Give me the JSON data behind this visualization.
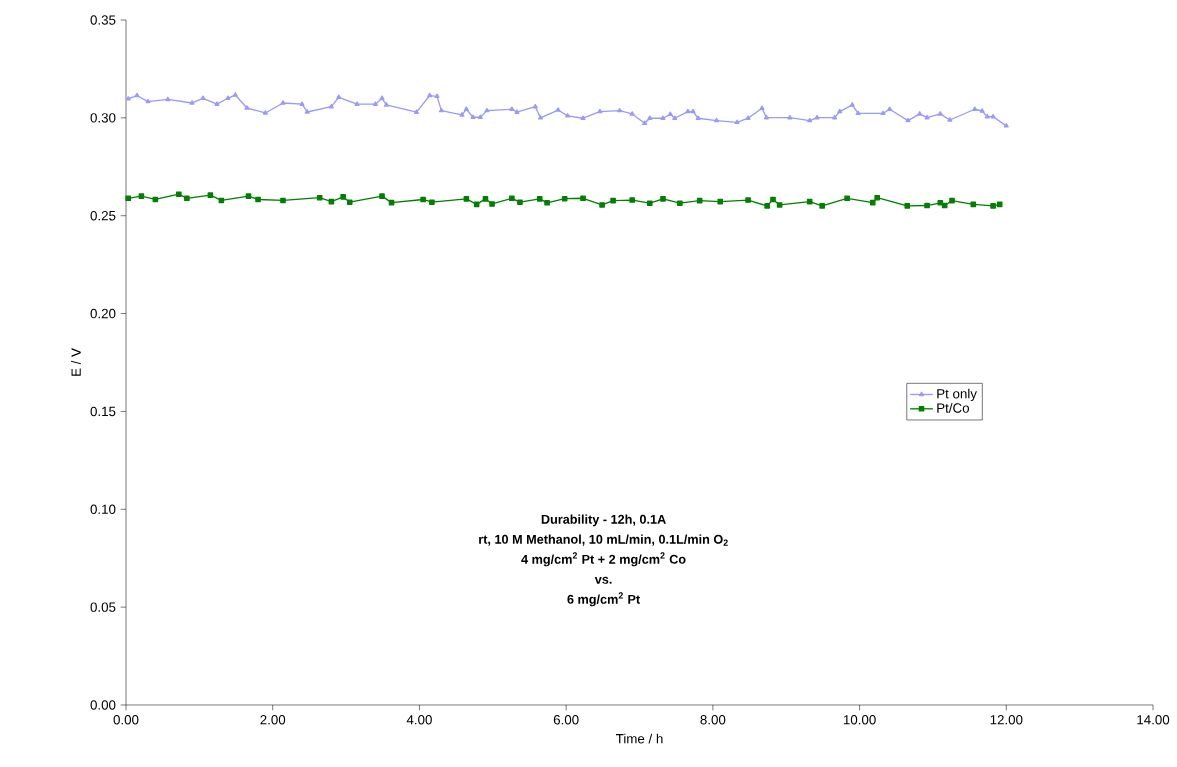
{
  "chart_data": {
    "type": "line",
    "xlabel": "Time / h",
    "ylabel": "E / V",
    "xlim": [
      0,
      14
    ],
    "ylim": [
      0,
      0.35
    ],
    "xticks": [
      {
        "value": 0,
        "label": "0.00"
      },
      {
        "value": 2,
        "label": "2.00"
      },
      {
        "value": 4,
        "label": "4.00"
      },
      {
        "value": 6,
        "label": "6.00"
      },
      {
        "value": 8,
        "label": "8.00"
      },
      {
        "value": 10,
        "label": "10.00"
      },
      {
        "value": 12,
        "label": "12.00"
      },
      {
        "value": 14,
        "label": "14.00"
      }
    ],
    "yticks": [
      {
        "value": 0,
        "label": "0.00"
      },
      {
        "value": 0.05,
        "label": "0.05"
      },
      {
        "value": 0.1,
        "label": "0.10"
      },
      {
        "value": 0.15,
        "label": "0.15"
      },
      {
        "value": 0.2,
        "label": "0.20"
      },
      {
        "value": 0.25,
        "label": "0.25"
      },
      {
        "value": 0.3,
        "label": "0.30"
      },
      {
        "value": 0.35,
        "label": "0.35"
      }
    ],
    "grid": false,
    "legend": "right",
    "series": [
      {
        "name": "Pt only",
        "color": "#9999ff",
        "marker": "triangle",
        "x": [
          0.03,
          0.15,
          0.3,
          0.57,
          0.9,
          1.05,
          1.24,
          1.39,
          1.49,
          1.65,
          1.9,
          2.14,
          2.4,
          2.47,
          2.8,
          2.9,
          3.15,
          3.4,
          3.49,
          3.55,
          3.96,
          4.14,
          4.24,
          4.3,
          4.58,
          4.64,
          4.73,
          4.83,
          4.92,
          5.26,
          5.33,
          5.58,
          5.65,
          5.89,
          6.02,
          6.23,
          6.46,
          6.73,
          6.9,
          7.07,
          7.14,
          7.32,
          7.42,
          7.48,
          7.66,
          7.73,
          7.8,
          8.05,
          8.33,
          8.48,
          8.67,
          8.73,
          9.05,
          9.32,
          9.42,
          9.66,
          9.73,
          9.9,
          9.98,
          10.32,
          10.41,
          10.66,
          10.82,
          10.92,
          11.1,
          11.23,
          11.57,
          11.67,
          11.74,
          11.82,
          12.0
        ],
        "values": [
          0.3097,
          0.3114,
          0.3083,
          0.3094,
          0.3076,
          0.31,
          0.307,
          0.31,
          0.3117,
          0.305,
          0.3025,
          0.3076,
          0.307,
          0.303,
          0.3057,
          0.3105,
          0.307,
          0.307,
          0.31,
          0.3066,
          0.3029,
          0.3114,
          0.311,
          0.3037,
          0.3015,
          0.3044,
          0.3003,
          0.3003,
          0.3037,
          0.3044,
          0.3029,
          0.3057,
          0.3,
          0.304,
          0.301,
          0.2998,
          0.3032,
          0.3037,
          0.302,
          0.2972,
          0.2998,
          0.2998,
          0.3018,
          0.2998,
          0.3032,
          0.3032,
          0.2998,
          0.2986,
          0.2977,
          0.2998,
          0.3049,
          0.3001,
          0.3001,
          0.2986,
          0.3001,
          0.3001,
          0.3032,
          0.3066,
          0.3023,
          0.3023,
          0.3044,
          0.2986,
          0.302,
          0.3001,
          0.302,
          0.2989,
          0.3044,
          0.3035,
          0.3006,
          0.3006,
          0.2959
        ]
      },
      {
        "name": "Pt/Co",
        "color": "#008000",
        "marker": "square",
        "x": [
          0.03,
          0.21,
          0.4,
          0.72,
          0.83,
          1.15,
          1.3,
          1.67,
          1.8,
          2.14,
          2.64,
          2.8,
          2.96,
          3.05,
          3.49,
          3.62,
          4.05,
          4.17,
          4.64,
          4.78,
          4.9,
          4.99,
          5.26,
          5.37,
          5.64,
          5.74,
          5.98,
          6.23,
          6.49,
          6.64,
          6.9,
          7.14,
          7.32,
          7.55,
          7.82,
          8.1,
          8.48,
          8.74,
          8.82,
          8.91,
          9.32,
          9.49,
          9.83,
          10.18,
          10.24,
          10.65,
          10.92,
          11.1,
          11.16,
          11.26,
          11.55,
          11.82,
          11.91
        ],
        "values": [
          0.2589,
          0.26,
          0.2583,
          0.261,
          0.2589,
          0.2605,
          0.2578,
          0.26,
          0.2583,
          0.2578,
          0.2592,
          0.2572,
          0.2596,
          0.2569,
          0.26,
          0.2567,
          0.2583,
          0.2569,
          0.2586,
          0.2558,
          0.2586,
          0.256,
          0.2589,
          0.2569,
          0.2586,
          0.2566,
          0.2587,
          0.2589,
          0.2555,
          0.2577,
          0.258,
          0.2564,
          0.2586,
          0.2564,
          0.2577,
          0.2572,
          0.258,
          0.255,
          0.2583,
          0.2555,
          0.2572,
          0.255,
          0.2589,
          0.2567,
          0.2592,
          0.255,
          0.2552,
          0.2566,
          0.2552,
          0.2577,
          0.2558,
          0.255,
          0.2558
        ]
      }
    ],
    "annotations": [
      "**Durability - 12h, 0.1A**",
      "**rt, 10 M Methanol, 10 mL/min, 0.1L/min O$_{2}$**",
      "**4 mg/cm$^{2}$ Pt + 2 mg/cm$^{2}$ Co**",
      "**vs.**",
      "**6 mg/cm$^{2}$ Pt**"
    ]
  }
}
